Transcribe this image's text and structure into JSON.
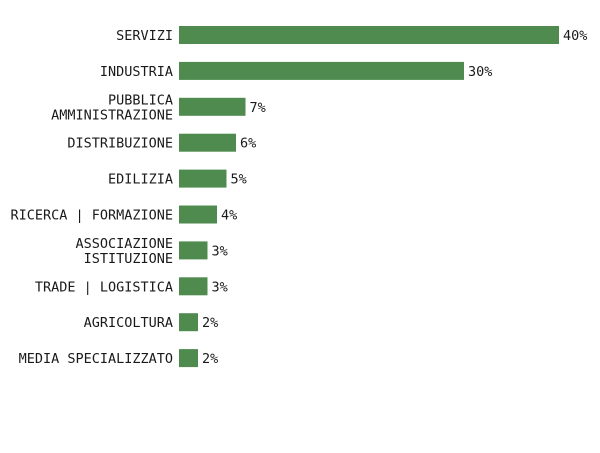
{
  "chart_data": {
    "type": "bar",
    "orientation": "horizontal",
    "title": "",
    "xlabel": "",
    "ylabel": "",
    "grid": false,
    "legend": "none",
    "bar_color": "#4f8a4f",
    "value_suffix": "%",
    "xlim": [
      0,
      40
    ],
    "categories": [
      [
        "SERVIZI"
      ],
      [
        "INDUSTRIA"
      ],
      [
        "PUBBLICA",
        "AMMINISTRAZIONE"
      ],
      [
        "DISTRIBUZIONE"
      ],
      [
        "EDILIZIA"
      ],
      [
        "RICERCA | FORMAZIONE"
      ],
      [
        "ASSOCIAZIONE",
        "ISTITUZIONE"
      ],
      [
        "TRADE | LOGISTICA"
      ],
      [
        "AGRICOLTURA"
      ],
      [
        "MEDIA SPECIALIZZATO"
      ]
    ],
    "values": [
      40,
      30,
      7,
      6,
      5,
      4,
      3,
      3,
      2,
      2
    ],
    "value_labels": [
      "40%",
      "30%",
      "7%",
      "6%",
      "5%",
      "4%",
      "3%",
      "3%",
      "2%",
      "2%"
    ]
  }
}
